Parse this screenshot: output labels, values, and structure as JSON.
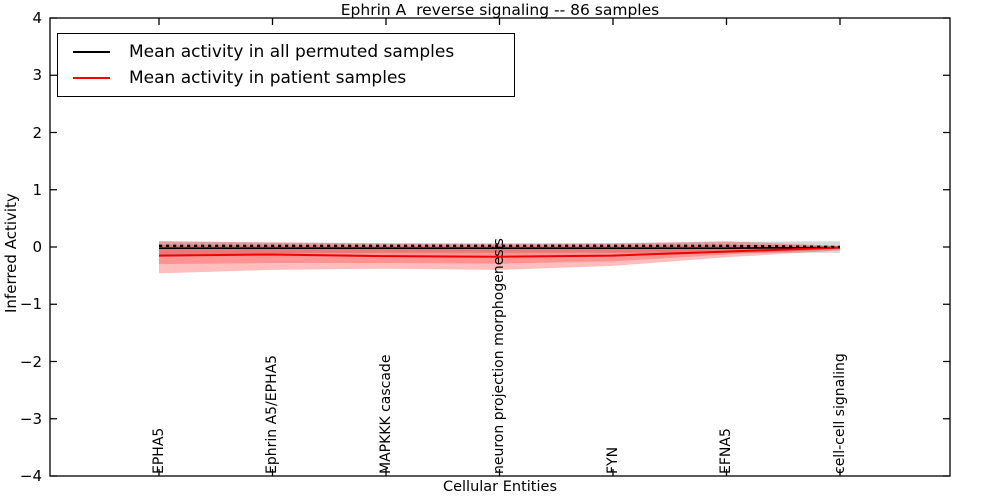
{
  "title": "Ephrin A  reverse signaling -- 86 samples",
  "axes": {
    "xlabel": "Cellular Entities",
    "ylabel": "Inferred Activity"
  },
  "legend": [
    {
      "label": "Mean activity in all permuted samples",
      "color": "#000000"
    },
    {
      "label": "Mean activity in patient samples",
      "color": "#ff0000"
    }
  ],
  "chart_data": {
    "type": "line",
    "title": "Ephrin A  reverse signaling -- 86 samples",
    "xlabel": "Cellular Entities",
    "ylabel": "Inferred Activity",
    "ylim": [
      -4,
      4
    ],
    "yticks": [
      4,
      3,
      2,
      1,
      0,
      -1,
      -2,
      -3,
      -4
    ],
    "grid": false,
    "legend_position": "upper left",
    "categories": [
      "EPHA5",
      "Ephrin A5/EPHA5",
      "MAPKKK cascade",
      "neuron projection morphogenesis",
      "FYN",
      "EFNA5",
      "cell-cell signaling"
    ],
    "series": [
      {
        "name": "Mean activity in all permuted samples",
        "color": "#000000",
        "style": "solid",
        "line_width": 1.6,
        "values": [
          -0.02,
          -0.02,
          -0.02,
          -0.02,
          -0.02,
          -0.02,
          -0.01
        ]
      },
      {
        "name": "Mean activity in patient samples",
        "color": "#ee0000",
        "style": "solid",
        "line_width": 2,
        "values": [
          -0.15,
          -0.13,
          -0.16,
          -0.17,
          -0.15,
          -0.08,
          -0.01
        ]
      },
      {
        "name": "permuted mean dashed overlay",
        "color": "#000000",
        "style": "dashed",
        "line_width": 2.4,
        "values": [
          0.02,
          0.02,
          0.02,
          0.02,
          0.02,
          0.02,
          0.0
        ]
      }
    ],
    "bands": [
      {
        "name": "permuted std band",
        "color": "rgba(120,120,120,0.30)",
        "upper": [
          0.1,
          0.08,
          0.07,
          0.07,
          0.07,
          0.09,
          0.1
        ],
        "lower": [
          -0.14,
          -0.11,
          -0.1,
          -0.1,
          -0.1,
          -0.1,
          -0.1
        ]
      },
      {
        "name": "patient std band",
        "color": "rgba(255,0,0,0.26)",
        "upper": [
          0.1,
          0.08,
          0.06,
          0.05,
          0.06,
          0.1,
          0.02
        ],
        "lower": [
          -0.46,
          -0.4,
          -0.38,
          -0.4,
          -0.33,
          -0.18,
          -0.06
        ]
      },
      {
        "name": "patient inner band",
        "color": "rgba(255,0,0,0.22)",
        "upper": [
          0.04,
          0.03,
          0.02,
          0.02,
          0.02,
          0.04,
          0.01
        ],
        "lower": [
          -0.3,
          -0.28,
          -0.28,
          -0.29,
          -0.25,
          -0.13,
          -0.04
        ]
      }
    ]
  }
}
